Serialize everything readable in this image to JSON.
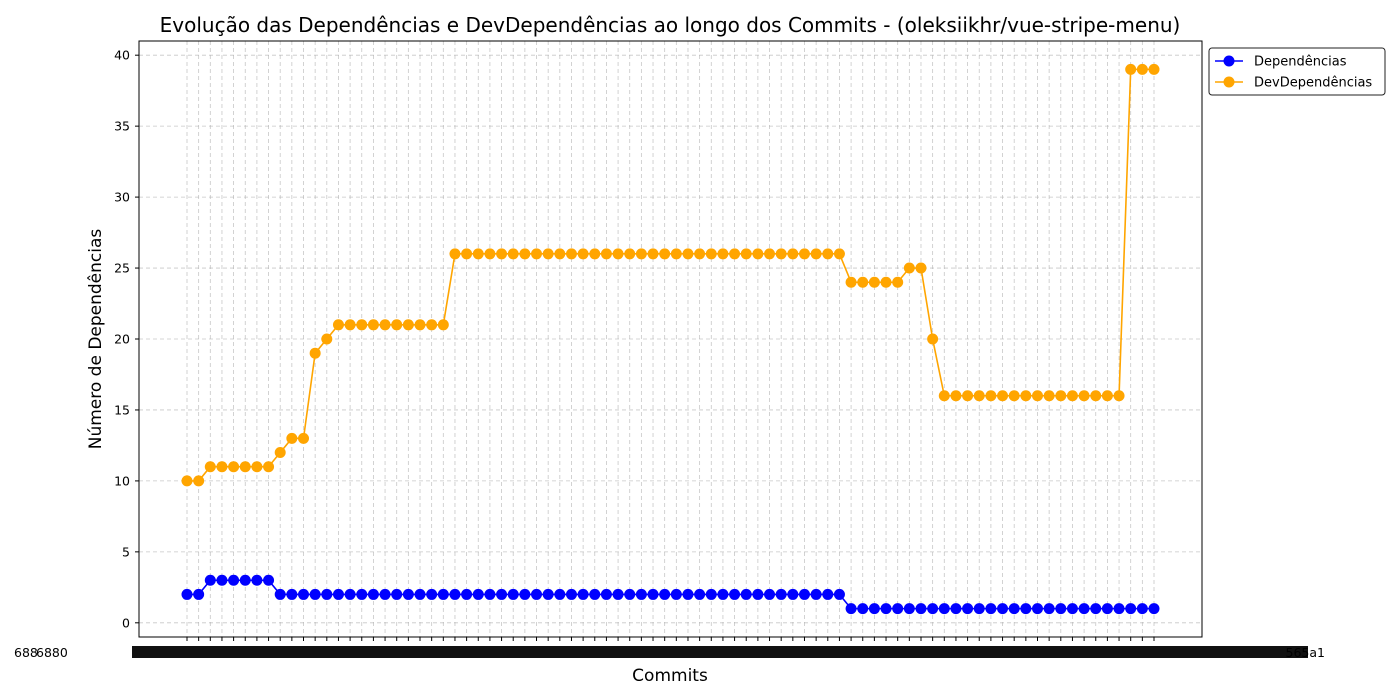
{
  "chart_data": {
    "type": "line",
    "title": "Evolução das Dependências e DevDependências ao longo dos Commits - (oleksiikhr/vue-stripe-menu)",
    "xlabel": "Commits",
    "ylabel": "Número de Dependências",
    "ylim": [
      -1,
      41
    ],
    "yticks": [
      0,
      5,
      10,
      15,
      20,
      25,
      30,
      35,
      40
    ],
    "grid": true,
    "legend_position": "upper-right-outside",
    "x_tick_labels_visible": [
      "688",
      "6880",
      "565a1"
    ],
    "series": [
      {
        "name": "Dependências",
        "color": "#0000ff",
        "values": [
          2,
          2,
          3,
          3,
          3,
          3,
          3,
          3,
          2,
          2,
          2,
          2,
          2,
          2,
          2,
          2,
          2,
          2,
          2,
          2,
          2,
          2,
          2,
          2,
          2,
          2,
          2,
          2,
          2,
          2,
          2,
          2,
          2,
          2,
          2,
          2,
          2,
          2,
          2,
          2,
          2,
          2,
          2,
          2,
          2,
          2,
          2,
          2,
          2,
          2,
          2,
          2,
          2,
          2,
          2,
          2,
          2,
          1,
          1,
          1,
          1,
          1,
          1,
          1,
          1,
          1,
          1,
          1,
          1,
          1,
          1,
          1,
          1,
          1,
          1,
          1,
          1,
          1,
          1,
          1,
          1,
          1,
          1,
          1
        ]
      },
      {
        "name": "DevDependências",
        "color": "#ffa500",
        "values": [
          10,
          10,
          11,
          11,
          11,
          11,
          11,
          11,
          12,
          13,
          13,
          19,
          20,
          21,
          21,
          21,
          21,
          21,
          21,
          21,
          21,
          21,
          21,
          26,
          26,
          26,
          26,
          26,
          26,
          26,
          26,
          26,
          26,
          26,
          26,
          26,
          26,
          26,
          26,
          26,
          26,
          26,
          26,
          26,
          26,
          26,
          26,
          26,
          26,
          26,
          26,
          26,
          26,
          26,
          26,
          26,
          26,
          24,
          24,
          24,
          24,
          24,
          25,
          25,
          20,
          16,
          16,
          16,
          16,
          16,
          16,
          16,
          16,
          16,
          16,
          16,
          16,
          16,
          16,
          16,
          16,
          39,
          39,
          39
        ]
      }
    ]
  }
}
